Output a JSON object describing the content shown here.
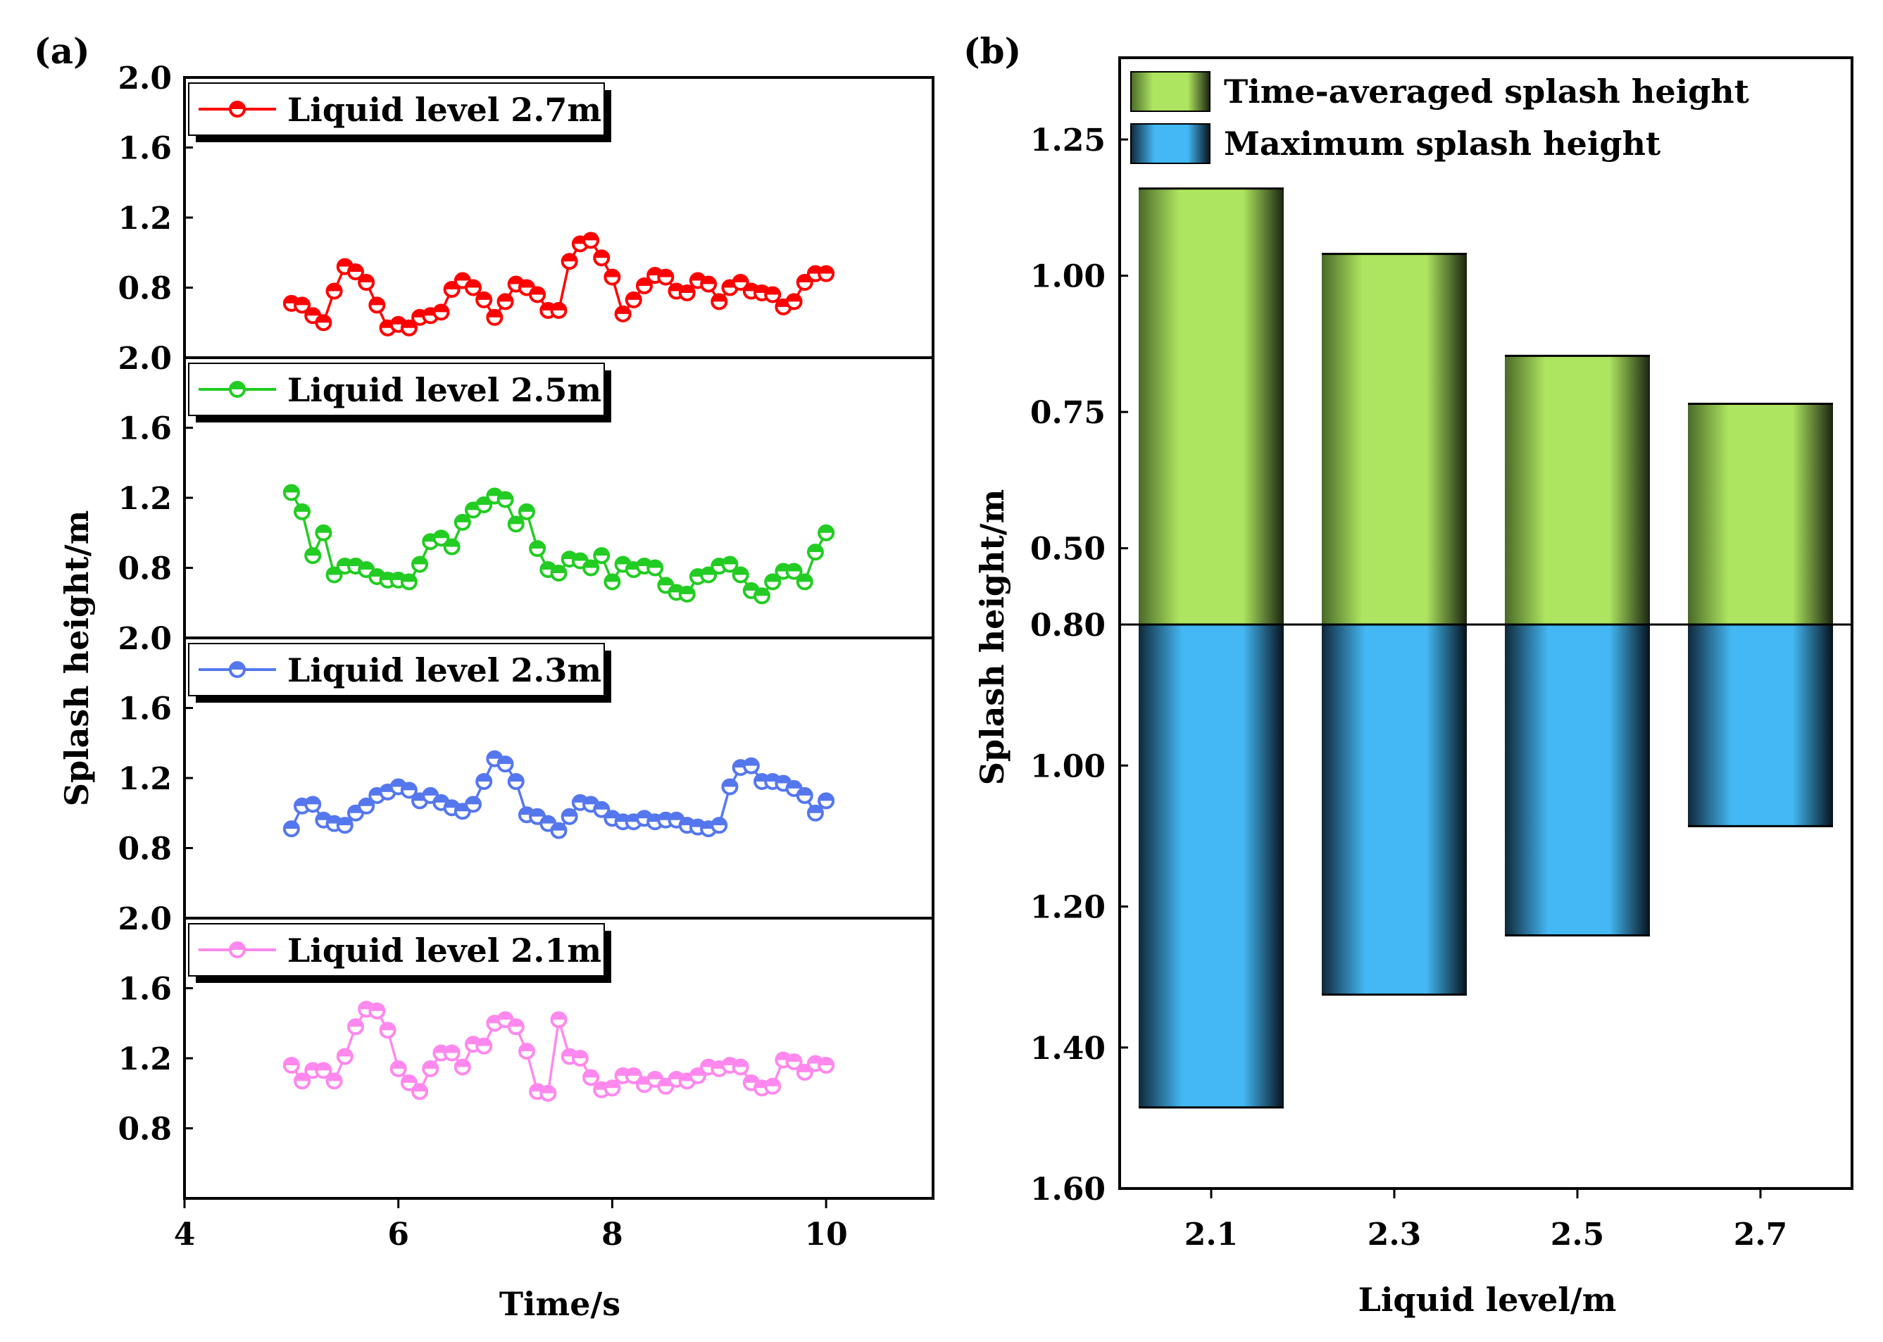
{
  "chart_data": [
    {
      "panel": "(a)",
      "type": "line",
      "xlabel": "Time/s",
      "ylabel": "Splash height/m",
      "xlim": [
        4,
        11
      ],
      "xticks": [
        4,
        6,
        8,
        10
      ],
      "ylim": [
        0.4,
        2.0
      ],
      "yticks": [
        "0.8",
        "1.2",
        "1.6",
        "2.0"
      ],
      "x": [
        5.0,
        5.1,
        5.2,
        5.3,
        5.4,
        5.5,
        5.6,
        5.7,
        5.8,
        5.9,
        6.0,
        6.1,
        6.2,
        6.3,
        6.4,
        6.5,
        6.6,
        6.7,
        6.8,
        6.9,
        7.0,
        7.1,
        7.2,
        7.3,
        7.4,
        7.5,
        7.6,
        7.7,
        7.8,
        7.9,
        8.0,
        8.1,
        8.2,
        8.3,
        8.4,
        8.5,
        8.6,
        8.7,
        8.8,
        8.9,
        9.0,
        9.1,
        9.2,
        9.3,
        9.4,
        9.5,
        9.6,
        9.7,
        9.8,
        9.9,
        10.0
      ],
      "series": [
        {
          "name": "Liquid level 2.7m",
          "color": "#ff0000",
          "values": [
            0.71,
            0.7,
            0.64,
            0.6,
            0.78,
            0.92,
            0.89,
            0.83,
            0.7,
            0.57,
            0.59,
            0.57,
            0.63,
            0.64,
            0.66,
            0.79,
            0.84,
            0.8,
            0.73,
            0.63,
            0.72,
            0.82,
            0.8,
            0.76,
            0.67,
            0.67,
            0.95,
            1.05,
            1.07,
            0.97,
            0.86,
            0.65,
            0.73,
            0.81,
            0.87,
            0.86,
            0.78,
            0.77,
            0.84,
            0.82,
            0.72,
            0.8,
            0.83,
            0.78,
            0.77,
            0.76,
            0.69,
            0.72,
            0.83,
            0.88,
            0.88
          ]
        },
        {
          "name": "Liquid level 2.5m",
          "color": "#22cc22",
          "values": [
            1.23,
            1.12,
            0.87,
            1.0,
            0.76,
            0.81,
            0.81,
            0.79,
            0.75,
            0.73,
            0.73,
            0.72,
            0.82,
            0.95,
            0.97,
            0.92,
            1.06,
            1.13,
            1.16,
            1.21,
            1.19,
            1.05,
            1.12,
            0.91,
            0.79,
            0.77,
            0.85,
            0.84,
            0.8,
            0.87,
            0.72,
            0.82,
            0.79,
            0.81,
            0.8,
            0.7,
            0.66,
            0.65,
            0.75,
            0.76,
            0.81,
            0.82,
            0.76,
            0.67,
            0.64,
            0.72,
            0.78,
            0.78,
            0.72,
            0.89,
            1.0
          ]
        },
        {
          "name": "Liquid level 2.3m",
          "color": "#5577ee",
          "values": [
            0.91,
            1.04,
            1.05,
            0.96,
            0.94,
            0.93,
            1.0,
            1.04,
            1.1,
            1.12,
            1.15,
            1.13,
            1.07,
            1.1,
            1.06,
            1.03,
            1.01,
            1.05,
            1.18,
            1.31,
            1.28,
            1.18,
            0.99,
            0.98,
            0.94,
            0.9,
            0.98,
            1.06,
            1.05,
            1.02,
            0.97,
            0.95,
            0.95,
            0.97,
            0.95,
            0.96,
            0.96,
            0.93,
            0.92,
            0.91,
            0.93,
            1.15,
            1.26,
            1.27,
            1.18,
            1.18,
            1.17,
            1.14,
            1.1,
            1.0,
            1.07
          ]
        },
        {
          "name": "Liquid level 2.1m",
          "color": "#ff88ee",
          "values": [
            1.16,
            1.07,
            1.13,
            1.13,
            1.07,
            1.21,
            1.38,
            1.48,
            1.47,
            1.36,
            1.14,
            1.06,
            1.01,
            1.14,
            1.23,
            1.23,
            1.15,
            1.28,
            1.27,
            1.4,
            1.42,
            1.38,
            1.24,
            1.01,
            1.0,
            1.42,
            1.21,
            1.2,
            1.09,
            1.02,
            1.03,
            1.1,
            1.1,
            1.05,
            1.08,
            1.04,
            1.08,
            1.07,
            1.1,
            1.15,
            1.14,
            1.16,
            1.15,
            1.06,
            1.03,
            1.04,
            1.19,
            1.18,
            1.12,
            1.17,
            1.16
          ]
        }
      ]
    },
    {
      "panel": "(b)",
      "type": "bar",
      "xlabel": "Liquid level/m",
      "ylabel": "Splash height/m",
      "categories": [
        "2.1",
        "2.3",
        "2.5",
        "2.7"
      ],
      "upper_axis": {
        "ylim": [
          0.36,
          1.4
        ],
        "ticks": [
          "0.50",
          "0.75",
          "1.00",
          "1.25"
        ]
      },
      "lower_axis": {
        "ylim": [
          0.8,
          1.6
        ],
        "ticks": [
          "0.80",
          "1.00",
          "1.20",
          "1.40",
          "1.60"
        ]
      },
      "series": [
        {
          "name": "Time-averaged splash height",
          "color": "#aee560",
          "values": [
            1.16,
            1.04,
            0.853,
            0.765
          ]
        },
        {
          "name": "Maximum splash height",
          "color": "#44b8f4",
          "values": [
            1.485,
            1.325,
            1.241,
            1.086
          ]
        }
      ],
      "legend_position": "top-left"
    }
  ]
}
